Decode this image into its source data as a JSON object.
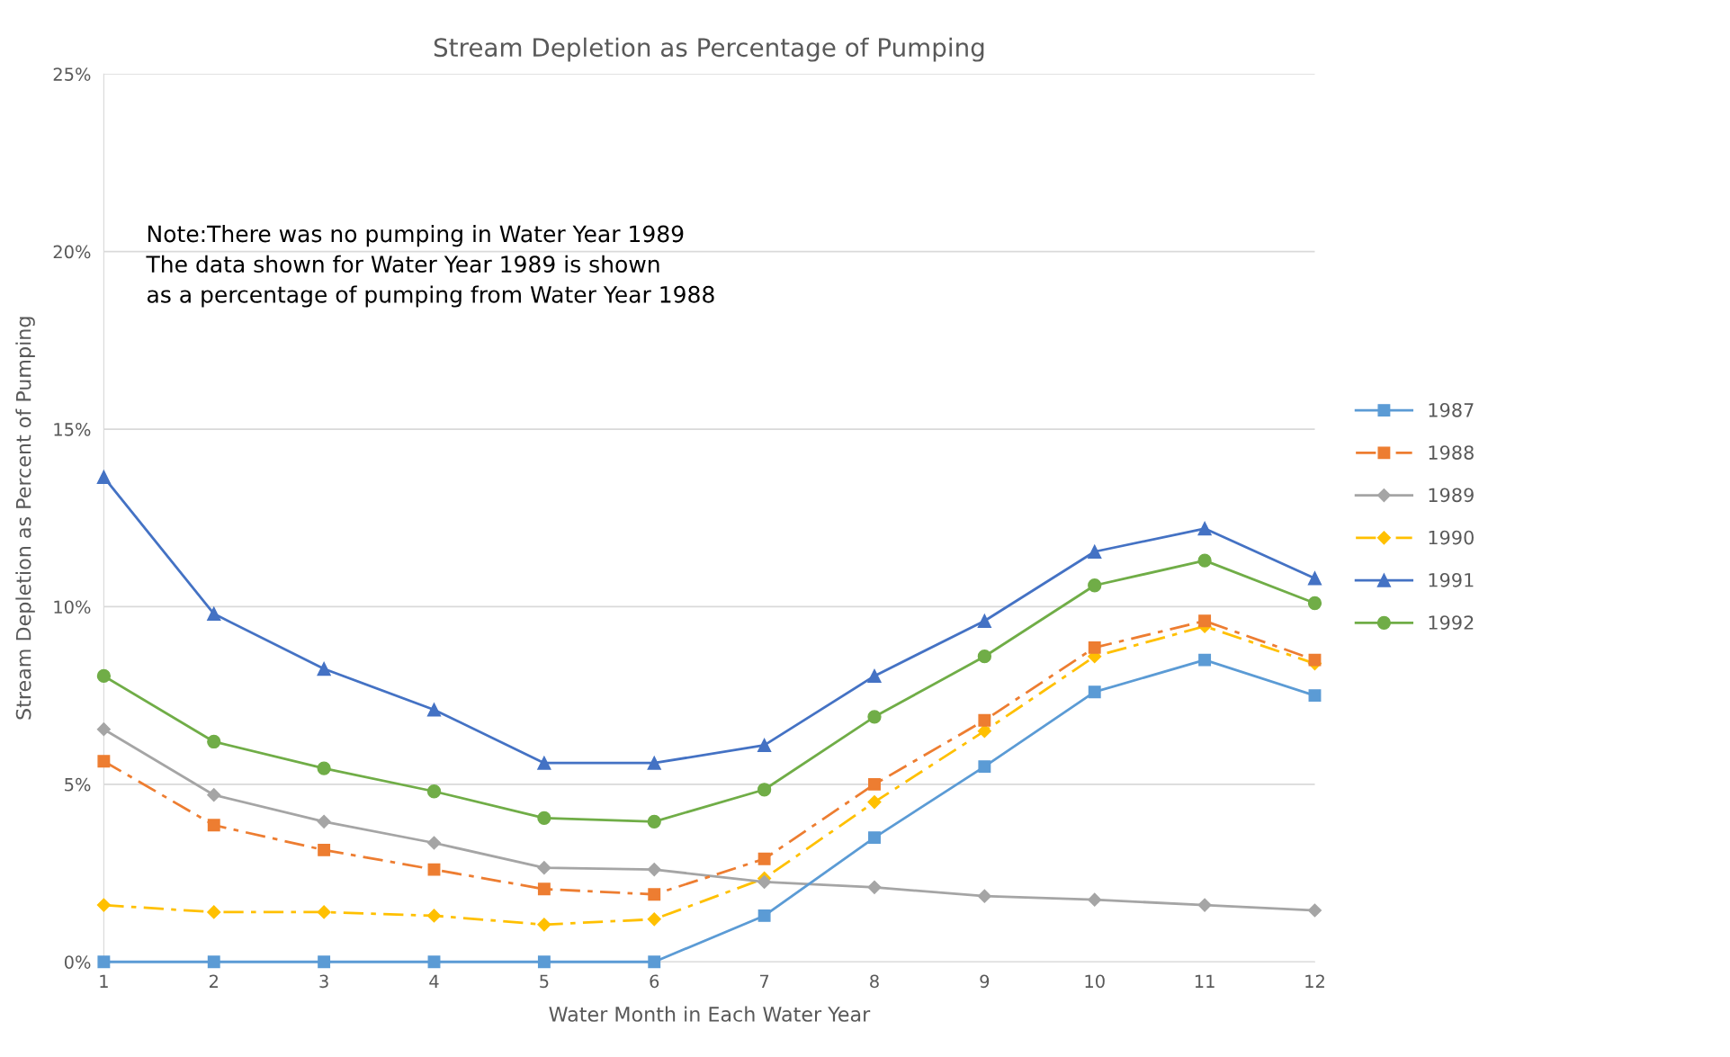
{
  "chart_data": {
    "type": "line",
    "title": "Stream Depletion as Percentage of Pumping",
    "xlabel": "Water Month in Each Water Year",
    "ylabel": "Stream Depletion as Percent of Pumping",
    "x": [
      1,
      2,
      3,
      4,
      5,
      6,
      7,
      8,
      9,
      10,
      11,
      12
    ],
    "xlim": [
      1,
      12
    ],
    "xticks": [
      1,
      2,
      3,
      4,
      5,
      6,
      7,
      8,
      9,
      10,
      11,
      12
    ],
    "ylim": [
      0,
      25
    ],
    "yticks": [
      {
        "value": 0,
        "label": "0%"
      },
      {
        "value": 5,
        "label": "5%"
      },
      {
        "value": 10,
        "label": "10%"
      },
      {
        "value": 15,
        "label": "15%"
      },
      {
        "value": 20,
        "label": "20%"
      },
      {
        "value": 25,
        "label": "25%"
      }
    ],
    "grid": "y",
    "legend": "right",
    "annotations": [
      "Note:There was no pumping in Water Year 1989\nThe data shown for Water Year 1989 is shown\nas a percentage of pumping from Water Year 1988"
    ],
    "series": [
      {
        "name": "1987",
        "color": "#5b9bd5",
        "marker": "square",
        "line_style": "solid",
        "values": [
          0,
          0,
          0,
          0,
          0,
          0,
          1.3,
          3.5,
          5.5,
          7.6,
          8.5,
          7.5
        ]
      },
      {
        "name": "1988",
        "color": "#ed7d31",
        "marker": "square",
        "line_style": "dashed",
        "values": [
          5.65,
          3.85,
          3.15,
          2.6,
          2.05,
          1.9,
          2.9,
          5.0,
          6.8,
          8.85,
          9.6,
          8.5
        ]
      },
      {
        "name": "1989",
        "color": "#a5a5a5",
        "marker": "diamond",
        "line_style": "solid",
        "values": [
          6.55,
          4.7,
          3.95,
          3.35,
          2.65,
          2.6,
          2.25,
          2.1,
          1.85,
          1.75,
          1.6,
          1.45
        ]
      },
      {
        "name": "1990",
        "color": "#ffc000",
        "marker": "diamond",
        "line_style": "dashed",
        "values": [
          1.6,
          1.4,
          1.4,
          1.3,
          1.05,
          1.2,
          2.35,
          4.5,
          6.5,
          8.6,
          9.45,
          8.4
        ]
      },
      {
        "name": "1991",
        "color": "#4472c4",
        "marker": "triangle",
        "line_style": "solid",
        "values": [
          13.65,
          9.8,
          8.25,
          7.1,
          5.6,
          5.6,
          6.1,
          8.05,
          9.6,
          11.55,
          12.2,
          10.8
        ]
      },
      {
        "name": "1992",
        "color": "#70ad47",
        "marker": "circle",
        "line_style": "solid",
        "values": [
          8.05,
          6.2,
          5.45,
          4.8,
          4.05,
          3.95,
          4.85,
          6.9,
          8.6,
          10.6,
          11.3,
          10.1
        ]
      }
    ]
  }
}
